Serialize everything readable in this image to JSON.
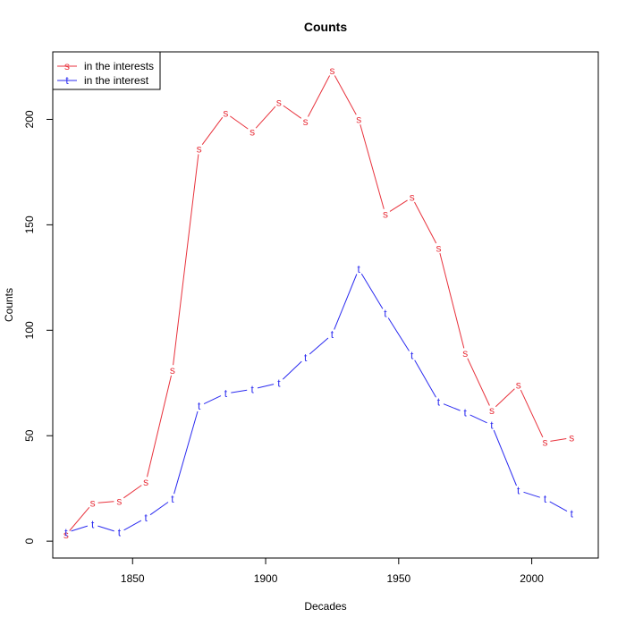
{
  "chart_data": {
    "type": "line",
    "title": "Counts",
    "xlabel": "Decades",
    "ylabel": "Counts",
    "xlim": [
      1820,
      2025
    ],
    "ylim": [
      -8,
      232
    ],
    "x_ticks": [
      1850,
      1900,
      1950,
      2000
    ],
    "y_ticks": [
      0,
      50,
      100,
      150,
      200
    ],
    "x": [
      1825,
      1835,
      1845,
      1855,
      1865,
      1875,
      1885,
      1895,
      1905,
      1915,
      1925,
      1935,
      1945,
      1955,
      1965,
      1975,
      1985,
      1995,
      2005,
      2015
    ],
    "series": [
      {
        "name": "in the interests",
        "marker": "s",
        "color": "#e8323c",
        "values": [
          3,
          18,
          19,
          28,
          81,
          186,
          203,
          194,
          208,
          199,
          223,
          200,
          155,
          163,
          139,
          89,
          62,
          74,
          47,
          49
        ]
      },
      {
        "name": "in the interest",
        "marker": "t",
        "color": "#2b2bf0",
        "values": [
          4,
          8,
          4,
          11,
          20,
          64,
          70,
          72,
          75,
          87,
          98,
          129,
          108,
          88,
          66,
          61,
          55,
          24,
          20,
          13
        ]
      }
    ],
    "legend_position": "top-left",
    "grid": false
  }
}
